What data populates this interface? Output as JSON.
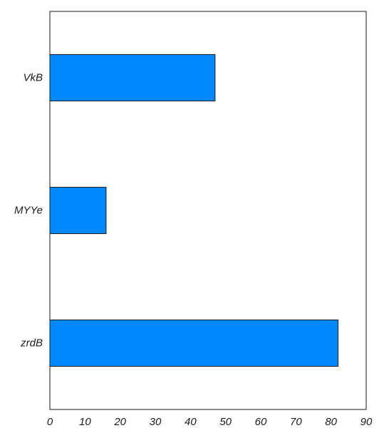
{
  "chart_data": {
    "type": "bar",
    "orientation": "horizontal",
    "title": "",
    "xlabel": "",
    "ylabel": "",
    "categories": [
      "VkB",
      "MYYe",
      "zrdB"
    ],
    "values": [
      47,
      16,
      82
    ],
    "xlim": [
      0,
      90
    ],
    "xticks": [
      0,
      10,
      20,
      30,
      40,
      50,
      60,
      70,
      80,
      90
    ],
    "grid": false,
    "legend": "none",
    "bar_color": "#0088ff",
    "bar_edge_color": "#1a1a1a"
  }
}
